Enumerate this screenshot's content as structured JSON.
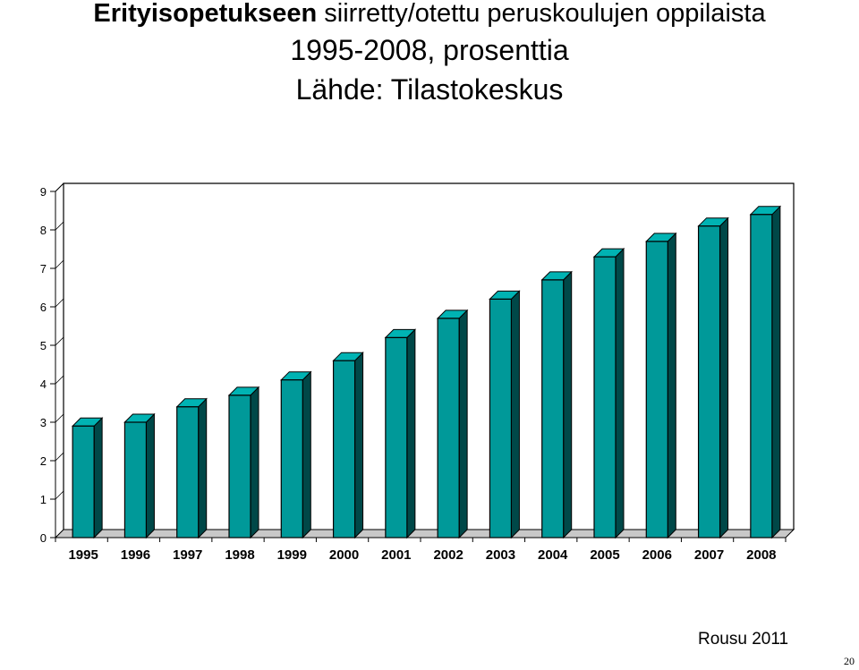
{
  "title": {
    "bold": "Erityisopetukseen",
    "rest": "siirretty/otettu peruskoulujen oppilaista",
    "line2": "1995-2008, prosenttia",
    "line3": "Lähde: Tilastokeskus"
  },
  "chart_data": {
    "type": "bar",
    "style": "3d",
    "categories": [
      "1995",
      "1996",
      "1997",
      "1998",
      "1999",
      "2000",
      "2001",
      "2002",
      "2003",
      "2004",
      "2005",
      "2006",
      "2007",
      "2008"
    ],
    "values": [
      2.9,
      3.0,
      3.4,
      3.7,
      4.1,
      4.6,
      5.2,
      5.7,
      6.2,
      6.7,
      7.3,
      7.7,
      8.1,
      8.4
    ],
    "ylim": [
      0,
      9
    ],
    "yticks": [
      "0",
      "1",
      "2",
      "3",
      "4",
      "5",
      "6",
      "7",
      "8",
      "9"
    ],
    "grid": false,
    "legend": "none",
    "colors": {
      "bar_front": "#009999",
      "bar_side": "#004848",
      "bar_top": "#00b3b3",
      "outline": "#000000"
    }
  },
  "credit": "Rousu 2011",
  "page_number": "20"
}
